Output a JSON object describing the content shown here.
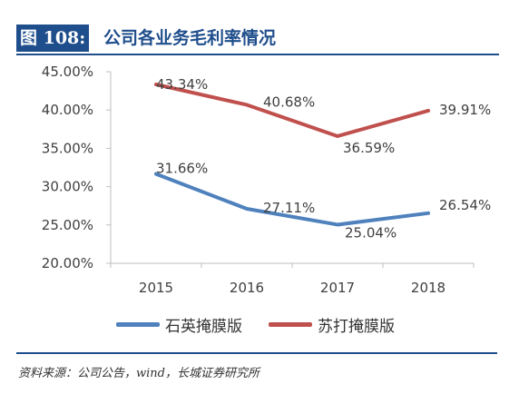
{
  "header": {
    "figure_label": "图 108:",
    "title": "公司各业务毛利率情况"
  },
  "colors": {
    "brand": "#1f4e8c",
    "series_quartz": "#4f81bd",
    "series_soda": "#c0504d",
    "axis": "#bfbfbf",
    "text": "#404040"
  },
  "chart_data": {
    "type": "line",
    "title": "公司各业务毛利率情况",
    "categories": [
      "2015",
      "2016",
      "2017",
      "2018"
    ],
    "yticks": [
      "20.00%",
      "25.00%",
      "30.00%",
      "35.00%",
      "40.00%",
      "45.00%"
    ],
    "ylim": [
      20,
      45
    ],
    "grid": false,
    "legend_position": "bottom",
    "series": [
      {
        "name": "石英掩膜版",
        "values": [
          31.66,
          27.11,
          25.04,
          26.54
        ],
        "labels": [
          "31.66%",
          "27.11%",
          "25.04%",
          "26.54%"
        ]
      },
      {
        "name": "苏打掩膜版",
        "values": [
          43.34,
          40.68,
          36.59,
          39.91
        ],
        "labels": [
          "43.34%",
          "40.68%",
          "36.59%",
          "39.91%"
        ]
      }
    ]
  },
  "legend": {
    "items": [
      "石英掩膜版",
      "苏打掩膜版"
    ]
  },
  "footer": {
    "source": "资料来源：公司公告，wind，长城证券研究所"
  }
}
